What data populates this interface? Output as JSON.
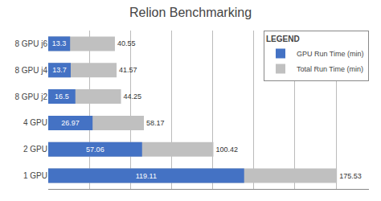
{
  "chart_data": {
    "type": "bar",
    "orientation": "horizontal",
    "title": "Relion Benchmarking",
    "categories": [
      "1 GPU",
      "2 GPU",
      "4 GPU",
      "8 GPU j2",
      "8 GPU j4",
      "8 GPU j6"
    ],
    "series": [
      {
        "name": "GPU Run Time (min)",
        "color": "#4472C4",
        "values": [
          119.11,
          57.06,
          26.97,
          16.5,
          13.7,
          13.3
        ]
      },
      {
        "name": "Total Run Time (min)",
        "color": "#C0C0C0",
        "values": [
          175.53,
          100.42,
          58.17,
          44.25,
          41.57,
          40.55
        ]
      }
    ],
    "xlim": [
      0,
      195
    ],
    "xticks": [
      0,
      25,
      50,
      75,
      100,
      125,
      150,
      175
    ],
    "tick_labels": "y",
    "grid": true,
    "legend": "upper right",
    "legend_title": "LEGEND",
    "data_labels": true
  }
}
